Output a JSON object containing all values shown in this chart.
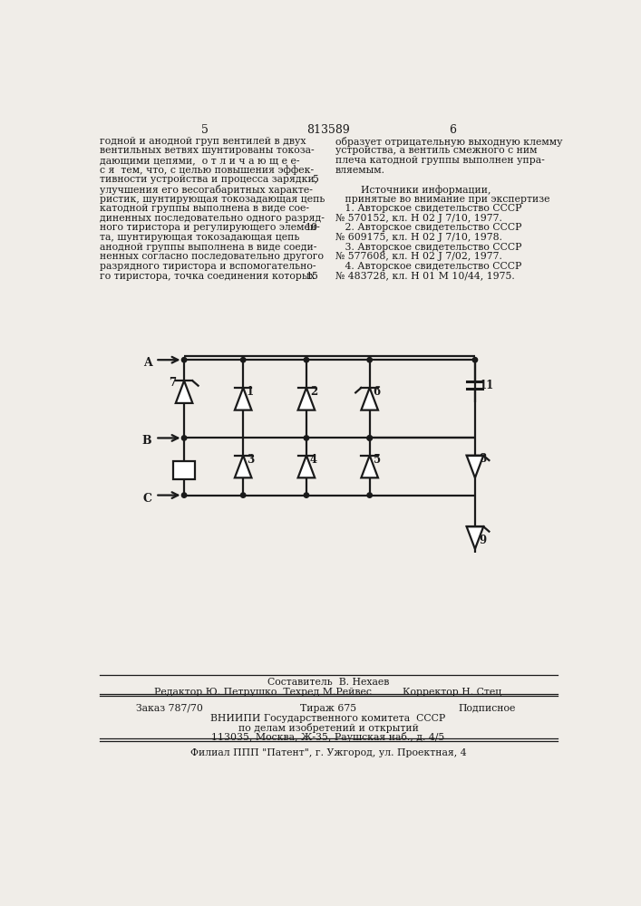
{
  "page_number_left": "5",
  "patent_number": "813589",
  "page_number_right": "6",
  "left_col": [
    "годной и анодной груп вентилей в двух",
    "вентильных ветвях шунтированы токоза-",
    "дающими цепями,  о т л и ч а ю щ е е-",
    "с я  тем, что, с целью повышения эффек-",
    "тивности устройства и процесса зарядки,",
    "улучшения его весогабаритных характе-",
    "ристик, шунтирующая токозадающая цепь",
    "катодной группы выполнена в виде сое-",
    "диненных последовательно одного разряд-",
    "ного тиристора и регулирующего элемен-",
    "та, шунтирующая токозадающая цепь",
    "анодной группы выполнена в виде соеди-",
    "ненных согласно последовательно другого",
    "разрядного тиристора и вспомогательно-",
    "го тиристора, точка соединения которых"
  ],
  "left_col_numbers": [
    null,
    null,
    null,
    null,
    "5",
    null,
    null,
    null,
    null,
    "10",
    null,
    null,
    null,
    null,
    "15"
  ],
  "right_col": [
    "образует отрицательную выходную клемму",
    "устройства, а вентиль смежного с ним",
    "плеча катодной группы выполнен упра-",
    "вляемым.",
    "",
    "        Источники информации,",
    "   принятые во внимание при экспертизе",
    "   1. Авторское свидетельство СССР",
    "№ 570152, кл. Н 02 J 7/10, 1977.",
    "   2. Авторское свидетельство СССР",
    "№ 609175, кл. Н 02 J 7/10, 1978.",
    "   3. Авторское свидетельство СССР",
    "№ 577608, кл. Н 02 J 7/02, 1977.",
    "   4. Авторское свидетельство СССР",
    "№ 483728, кл. Н 01 М 10/44, 1975."
  ],
  "footer_compose": "Составитель  В. Нехаев",
  "footer_editor": "Редактор Ю. Петрушко  Техред М.Рейвес",
  "footer_corrector": "Корректор Н. Стец",
  "footer_order": "Заказ 787/70",
  "footer_print": "Тираж 675",
  "footer_sub": "Подписное",
  "footer_org1": "ВНИИПИ Государственного комитета  СССР",
  "footer_org2": "по делам изобретений и открытий",
  "footer_addr": "113035, Москва, Ж-35, Раушская наб., д. 4/5",
  "footer_branch": "Филиал ППП \"Патент\", г. Ужгород, ул. Проектная, 4",
  "bg_color": "#f0ede8",
  "lc": "#1a1a1a"
}
